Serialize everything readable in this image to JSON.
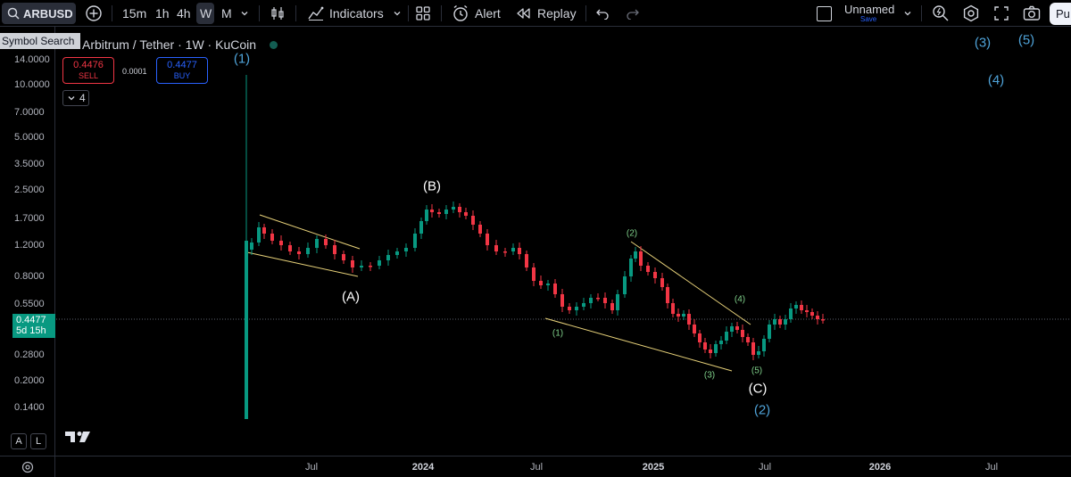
{
  "toolbar": {
    "symbol": "ARBUSD",
    "timeframes": [
      "15m",
      "1h",
      "4h",
      "W",
      "M"
    ],
    "active_timeframe": "W",
    "indicators_label": "Indicators",
    "alert_label": "Alert",
    "replay_label": "Replay",
    "layout_name": "Unnamed",
    "save_label": "Save",
    "publish_label": "Pu"
  },
  "tooltip": "Symbol Search",
  "chart": {
    "title": "Arbitrum / Tether · 1W · KuCoin",
    "sell_price": "0.4476",
    "sell_label": "SELL",
    "buy_price": "0.4477",
    "buy_label": "BUY",
    "spread": "0.0001",
    "quantity": "4",
    "current_price": "0.4477",
    "countdown": "5d 15h",
    "price_axis": [
      "14.0000",
      "10.0000",
      "7.0000",
      "5.0000",
      "3.5000",
      "2.5000",
      "1.7000",
      "1.2000",
      "0.8000",
      "0.5500",
      "0.2800",
      "0.2000",
      "0.1400"
    ],
    "time_axis": [
      {
        "label": "Jul",
        "bold": false
      },
      {
        "label": "2024",
        "bold": true
      },
      {
        "label": "Jul",
        "bold": false
      },
      {
        "label": "2025",
        "bold": true
      },
      {
        "label": "Jul",
        "bold": false
      },
      {
        "label": "2026",
        "bold": true
      },
      {
        "label": "Jul",
        "bold": false
      }
    ],
    "axis_mode_buttons": [
      "A",
      "L"
    ],
    "wave_labels": [
      {
        "text": "(1)",
        "color": "blue"
      },
      {
        "text": "(A)",
        "color": "white"
      },
      {
        "text": "(B)",
        "color": "white"
      },
      {
        "text": "(2)",
        "color": "green"
      },
      {
        "text": "(1)",
        "color": "green"
      },
      {
        "text": "(4)",
        "color": "green"
      },
      {
        "text": "(3)",
        "color": "green"
      },
      {
        "text": "(5)",
        "color": "green"
      },
      {
        "text": "(C)",
        "color": "white"
      },
      {
        "text": "(2)",
        "color": "blue"
      },
      {
        "text": "(3)",
        "color": "blue"
      },
      {
        "text": "(5)",
        "color": "blue"
      },
      {
        "text": "(4)",
        "color": "blue"
      }
    ]
  },
  "colors": {
    "up": "#089981",
    "down": "#f23645",
    "trendline": "#e8d27a",
    "accent": "#2962ff"
  },
  "icons": [
    "search-icon",
    "plus-circle-icon",
    "chevron-down-icon",
    "candles-icon",
    "indicators-icon",
    "templates-icon",
    "alert-icon",
    "replay-icon",
    "undo-icon",
    "redo-icon",
    "fullscreen-icon",
    "quick-search-icon",
    "settings-icon",
    "camera-icon",
    "tradingview-logo",
    "gear-icon"
  ]
}
